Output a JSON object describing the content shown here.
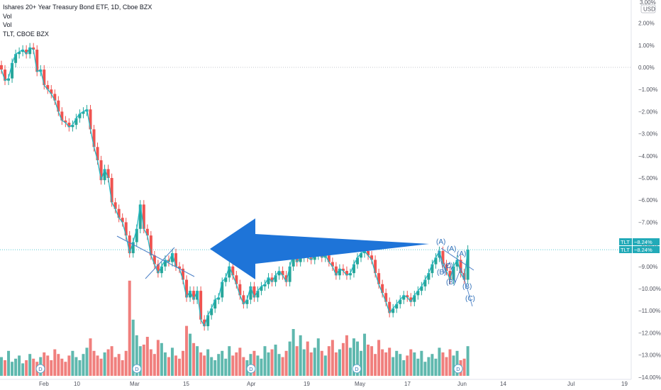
{
  "header": {
    "title": "Ishares 20+ Year Treasury Bond ETF, 1D, Cboe BZX",
    "indicators": [
      "Vol",
      "Vol",
      "TLT, CBOE BZX"
    ]
  },
  "axis": {
    "currency": "USD",
    "top_label": "3.00%"
  },
  "price_tags": [
    {
      "symbol": "TLT",
      "value": "−8.24%"
    },
    {
      "symbol": "TLT",
      "value": "−8.24%"
    }
  ],
  "colors": {
    "up": "#26a69a",
    "down": "#ef5350",
    "up_volume": "#5fb8ae",
    "down_volume": "#f07f7d",
    "compare_line": "#22b8c4",
    "arrow": "#1e74d8",
    "wave_label": "#2e6fb8",
    "tag": "#22aab8"
  },
  "chart_data": {
    "type": "line",
    "title": "Ishares 20+ Year Treasury Bond ETF, 1D, Cboe BZX",
    "ylabel": "",
    "y_unit": "% change",
    "ylim": [
      -14.0,
      3.0
    ],
    "y_ticks": [
      3.0,
      2.0,
      1.0,
      0.0,
      -1.0,
      -2.0,
      -3.0,
      -4.0,
      -5.0,
      -6.0,
      -7.0,
      -8.0,
      -9.0,
      -10.0,
      -11.0,
      -12.0,
      -13.0,
      -14.0
    ],
    "y_tick_labels": [
      "3.00%",
      "2.00%",
      "1.00%",
      "0.00%",
      "−1.00%",
      "−2.00%",
      "−3.00%",
      "−4.00%",
      "−5.00%",
      "−6.00%",
      "−7.00%",
      "−8.00%",
      "−9.00%",
      "−10.00%",
      "−11.00%",
      "−12.00%",
      "−13.00%",
      "−14.00%"
    ],
    "x_labels": [
      "Feb",
      "10",
      "Mar",
      "15",
      "Apr",
      "19",
      "May",
      "17",
      "Jun",
      "14",
      "Jul",
      "19"
    ],
    "last_value": -8.24,
    "series": [
      {
        "name": "TLT, CBOE BZX",
        "kind": "line",
        "values": [
          -0.1,
          -0.6,
          -0.5,
          0.2,
          0.6,
          0.7,
          0.8,
          0.6,
          0.9,
          0.8,
          -0.2,
          -0.1,
          -0.8,
          -1.0,
          -1.2,
          -1.5,
          -2.0,
          -2.4,
          -2.5,
          -2.7,
          -2.6,
          -2.3,
          -2.1,
          -2.0,
          -1.9,
          -2.8,
          -3.6,
          -4.2,
          -5.1,
          -4.6,
          -5.0,
          -6.1,
          -6.4,
          -6.8,
          -7.0,
          -7.6,
          -8.4,
          -7.9,
          -7.3,
          -6.2,
          -7.3,
          -7.6,
          -8.5,
          -8.9,
          -9.3,
          -9.0,
          -8.7,
          -8.8,
          -8.4,
          -9.0,
          -9.1,
          -9.6,
          -10.4,
          -10.1,
          -10.5,
          -10.1,
          -11.4,
          -11.7,
          -11.2,
          -10.9,
          -10.5,
          -10.4,
          -9.7,
          -9.5,
          -9.0,
          -9.4,
          -9.8,
          -10.3,
          -10.7,
          -10.5,
          -9.9,
          -10.4,
          -10.1,
          -9.9,
          -9.8,
          -9.5,
          -9.7,
          -9.4,
          -9.2,
          -9.4,
          -9.7,
          -9.0,
          -8.4,
          -8.8,
          -8.6,
          -8.5,
          -8.6,
          -8.7,
          -8.5,
          -8.2,
          -8.6,
          -8.5,
          -8.8,
          -9.0,
          -9.4,
          -9.1,
          -9.2,
          -9.4,
          -9.3,
          -8.9,
          -8.6,
          -8.4,
          -8.3,
          -8.5,
          -8.7,
          -9.3,
          -9.8,
          -10.2,
          -10.6,
          -11.1,
          -10.9,
          -10.7,
          -10.5,
          -10.3,
          -10.4,
          -10.6,
          -10.3,
          -10.1,
          -9.9,
          -9.6,
          -9.3,
          -8.9,
          -8.6,
          -8.3,
          -8.9,
          -9.2,
          -9.6,
          -9.0,
          -8.7,
          -9.3,
          -9.6,
          -8.24
        ]
      },
      {
        "name": "Vol",
        "kind": "volume",
        "values": [
          1.2,
          1.0,
          1.6,
          0.9,
          1.1,
          1.3,
          0.8,
          1.0,
          1.4,
          1.1,
          0.9,
          1.2,
          1.5,
          1.3,
          1.0,
          1.7,
          1.4,
          1.1,
          0.9,
          1.3,
          1.6,
          1.2,
          1.0,
          1.4,
          1.8,
          2.4,
          1.6,
          1.3,
          1.1,
          1.5,
          1.7,
          1.9,
          1.2,
          1.4,
          1.0,
          1.6,
          6.1,
          3.6,
          2.6,
          1.9,
          2.0,
          2.5,
          1.7,
          1.4,
          2.3,
          2.1,
          1.5,
          1.2,
          1.8,
          1.3,
          1.1,
          1.6,
          3.2,
          2.7,
          2.1,
          1.9,
          1.5,
          1.3,
          1.7,
          1.2,
          1.0,
          1.4,
          1.6,
          1.1,
          1.9,
          1.3,
          1.5,
          1.8,
          1.2,
          1.0,
          1.4,
          1.6,
          1.3,
          1.1,
          1.9,
          1.5,
          1.7,
          2.0,
          1.4,
          1.2,
          1.6,
          2.2,
          3.0,
          1.9,
          2.6,
          1.7,
          2.2,
          1.5,
          1.8,
          2.4,
          1.6,
          1.3,
          1.9,
          2.3,
          1.5,
          1.7,
          2.1,
          2.6,
          1.8,
          2.4,
          2.2,
          1.6,
          2.7,
          2.0,
          1.9,
          1.4,
          2.3,
          1.7,
          1.5,
          1.8,
          1.2,
          1.6,
          1.4,
          1.0,
          1.3,
          1.7,
          1.5,
          1.1,
          1.6,
          0.9,
          1.2,
          1.4,
          1.1,
          1.8,
          1.5,
          1.2,
          1.7,
          1.3,
          1.6,
          1.0,
          1.1,
          1.9
        ]
      }
    ],
    "dividend_markers": [
      "D",
      "D",
      "D",
      "D",
      "D"
    ],
    "wave_labels": [
      "(A)",
      "(A)",
      "(A)",
      "(B)",
      "(C)",
      "(B)",
      "(B)",
      "(C)"
    ]
  }
}
